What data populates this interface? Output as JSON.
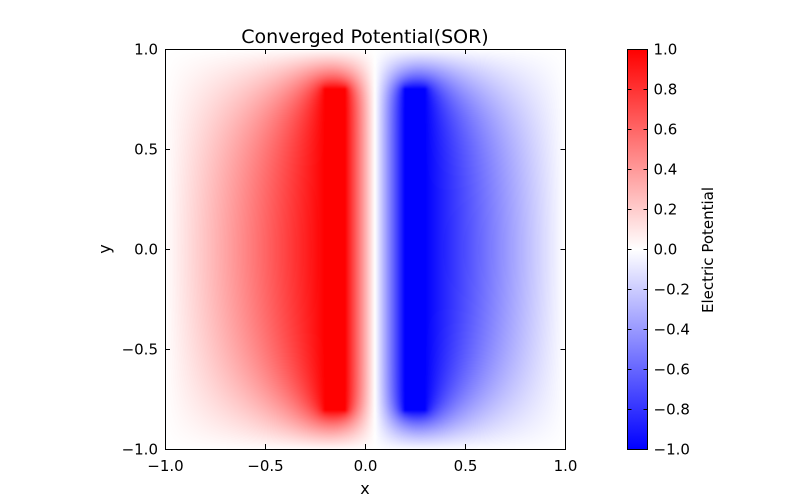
{
  "chart_data": {
    "type": "heatmap",
    "title": "Converged Potential(SOR)",
    "xlabel": "x",
    "ylabel": "y",
    "xlim": [
      -1.0,
      1.0
    ],
    "ylim": [
      -1.0,
      1.0
    ],
    "x_ticks": [
      -1.0,
      -0.5,
      0.0,
      0.5,
      1.0
    ],
    "x_tick_labels": [
      "−1.0",
      "−0.5",
      "0.0",
      "0.5",
      "1.0"
    ],
    "y_ticks": [
      -1.0,
      -0.5,
      0.0,
      0.5,
      1.0
    ],
    "y_tick_labels": [
      "−1.0",
      "−0.5",
      "0.0",
      "0.5",
      "1.0"
    ],
    "colormap": "bwr",
    "colormap_colors": {
      "min": "#0000ff",
      "mid": "#ffffff",
      "max": "#ff0000"
    },
    "colorbar": {
      "label": "Electric Potential",
      "range": [
        -1.0,
        1.0
      ],
      "ticks": [
        1.0,
        0.8,
        0.6,
        0.4,
        0.2,
        0.0,
        -0.2,
        -0.4,
        -0.6,
        -0.8,
        -1.0
      ],
      "tick_labels": [
        "1.0",
        "0.8",
        "0.6",
        "0.4",
        "0.2",
        "0.0",
        "−0.2",
        "−0.4",
        "−0.6",
        "−0.8",
        "−1.0"
      ]
    },
    "sources": [
      {
        "value": 1.0,
        "x_range": [
          -0.2,
          -0.1
        ],
        "y_range": [
          -0.8,
          0.8
        ]
      },
      {
        "value": -1.0,
        "x_range": [
          0.2,
          0.3
        ],
        "y_range": [
          -0.8,
          0.8
        ]
      }
    ],
    "boundary_value": 0.0
  }
}
